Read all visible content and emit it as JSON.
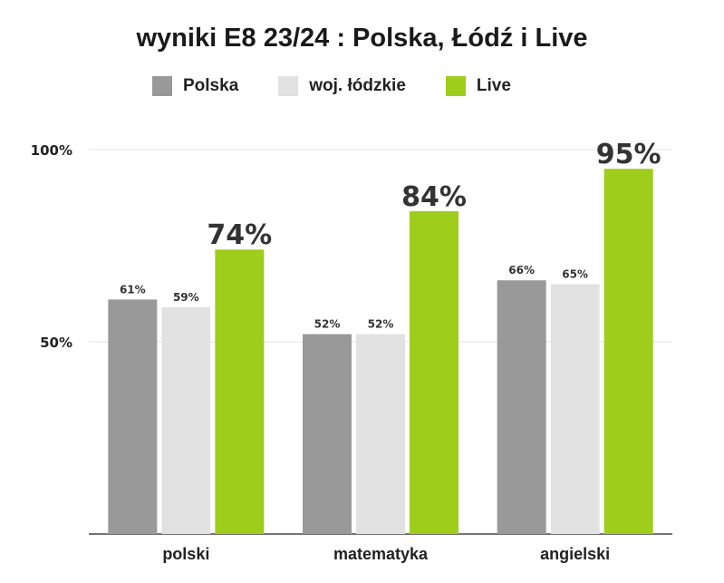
{
  "chart_data": {
    "type": "bar",
    "title": "wyniki E8 23/24 : Polska, Łódź i Live",
    "categories": [
      "polski",
      "matematyka",
      "angielski"
    ],
    "series": [
      {
        "name": "Polska",
        "color": "#999999",
        "values": [
          61,
          52,
          66
        ],
        "labels": [
          "61%",
          "52%",
          "66%"
        ]
      },
      {
        "name": "woj. łódzkie",
        "color": "#e2e2e2",
        "values": [
          59,
          52,
          65
        ],
        "labels": [
          "59%",
          "52%",
          "65%"
        ]
      },
      {
        "name": "Live",
        "color": "#9ecd1b",
        "values": [
          74,
          84,
          95
        ],
        "labels": [
          "74%",
          "84%",
          "95%"
        ]
      }
    ],
    "yticks": [
      {
        "value": 50,
        "label": "50%"
      },
      {
        "value": 100,
        "label": "100%"
      }
    ],
    "ylim": [
      0,
      100
    ],
    "grid": true,
    "legend_position": "top"
  }
}
